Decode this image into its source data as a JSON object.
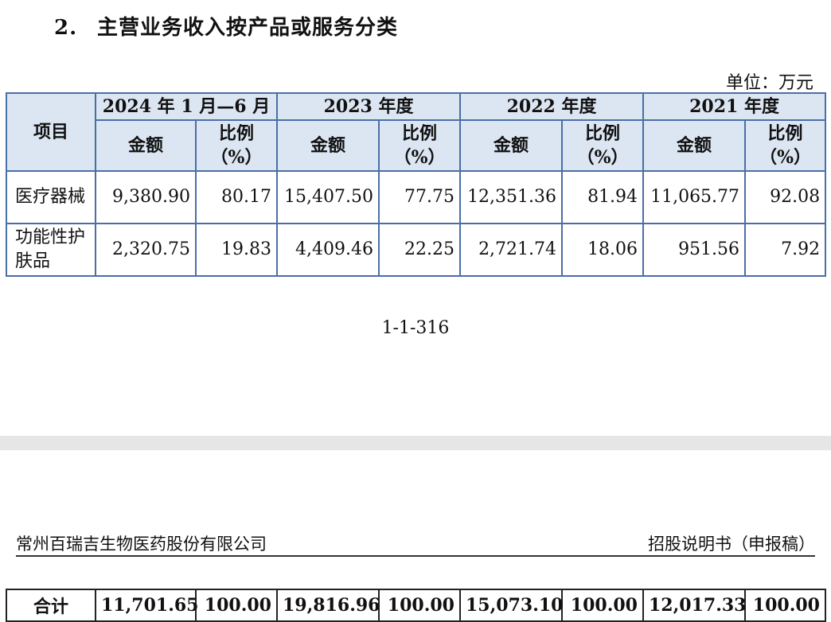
{
  "section": {
    "number": "2.",
    "title": "主营业务收入按产品或服务分类"
  },
  "unit": "单位：万元",
  "table": {
    "item_header": "项目",
    "periods": [
      "2024 年 1 月—6 月",
      "2023 年度",
      "2022 年度",
      "2021 年度"
    ],
    "amount_header": "金额",
    "ratio_header_line1": "比例",
    "ratio_header_line2": "（%）",
    "rows": [
      {
        "item": "医疗器械",
        "values": [
          "9,380.90",
          "80.17",
          "15,407.50",
          "77.75",
          "12,351.36",
          "81.94",
          "11,065.77",
          "92.08"
        ]
      },
      {
        "item": "功能性护肤品",
        "values": [
          "2,320.75",
          "19.83",
          "4,409.46",
          "22.25",
          "2,721.74",
          "18.06",
          "951.56",
          "7.92"
        ]
      }
    ]
  },
  "page_number": "1-1-316",
  "running_header": {
    "company": "常州百瑞吉生物医药股份有限公司",
    "doc": "招股说明书（申报稿）"
  },
  "total_row": {
    "label": "合计",
    "values": [
      "11,701.65",
      "100.00",
      "19,816.96",
      "100.00",
      "15,073.10",
      "100.00",
      "12,017.33",
      "100.00"
    ]
  }
}
